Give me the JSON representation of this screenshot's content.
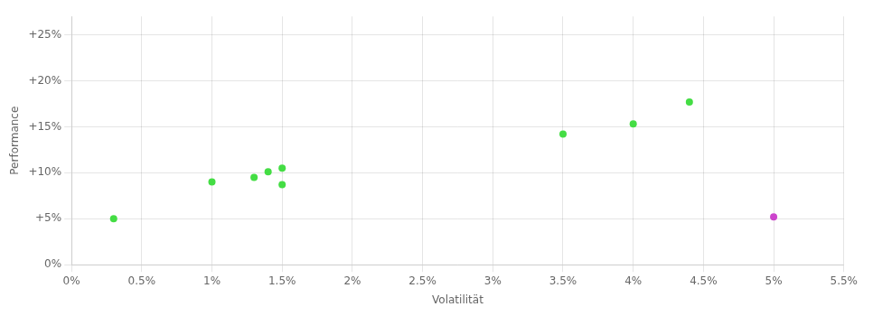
{
  "chart_data": {
    "type": "scatter",
    "xlabel": "Volatilität",
    "ylabel": "Performance",
    "series": [
      {
        "color": "#44dd44",
        "x": [
          0.003,
          0.01,
          0.013,
          0.014,
          0.015,
          0.015,
          0.035,
          0.04,
          0.044
        ],
        "values": [
          0.05,
          0.09,
          0.095,
          0.101,
          0.105,
          0.087,
          0.142,
          0.153,
          0.177
        ]
      },
      {
        "color": "#cc44cc",
        "x": [
          0.05
        ],
        "values": [
          0.052
        ]
      }
    ],
    "xlim": [
      0.0,
      0.055
    ],
    "ylim": [
      0.0,
      0.27
    ],
    "xticks": [
      {
        "value": 0.0,
        "label": "0%"
      },
      {
        "value": 0.005,
        "label": "0.5%"
      },
      {
        "value": 0.01,
        "label": "1%"
      },
      {
        "value": 0.015,
        "label": "1.5%"
      },
      {
        "value": 0.02,
        "label": "2%"
      },
      {
        "value": 0.025,
        "label": "2.5%"
      },
      {
        "value": 0.03,
        "label": "3%"
      },
      {
        "value": 0.035,
        "label": "3.5%"
      },
      {
        "value": 0.04,
        "label": "4%"
      },
      {
        "value": 0.045,
        "label": "4.5%"
      },
      {
        "value": 0.05,
        "label": "5%"
      },
      {
        "value": 0.055,
        "label": "5.5%"
      }
    ],
    "yticks": [
      {
        "value": 0.0,
        "label": "0%"
      },
      {
        "value": 0.05,
        "label": "+5%"
      },
      {
        "value": 0.1,
        "label": "+10%"
      },
      {
        "value": 0.15,
        "label": "+15%"
      },
      {
        "value": 0.2,
        "label": "+20%"
      },
      {
        "value": 0.25,
        "label": "+25%"
      }
    ],
    "grid": true
  }
}
